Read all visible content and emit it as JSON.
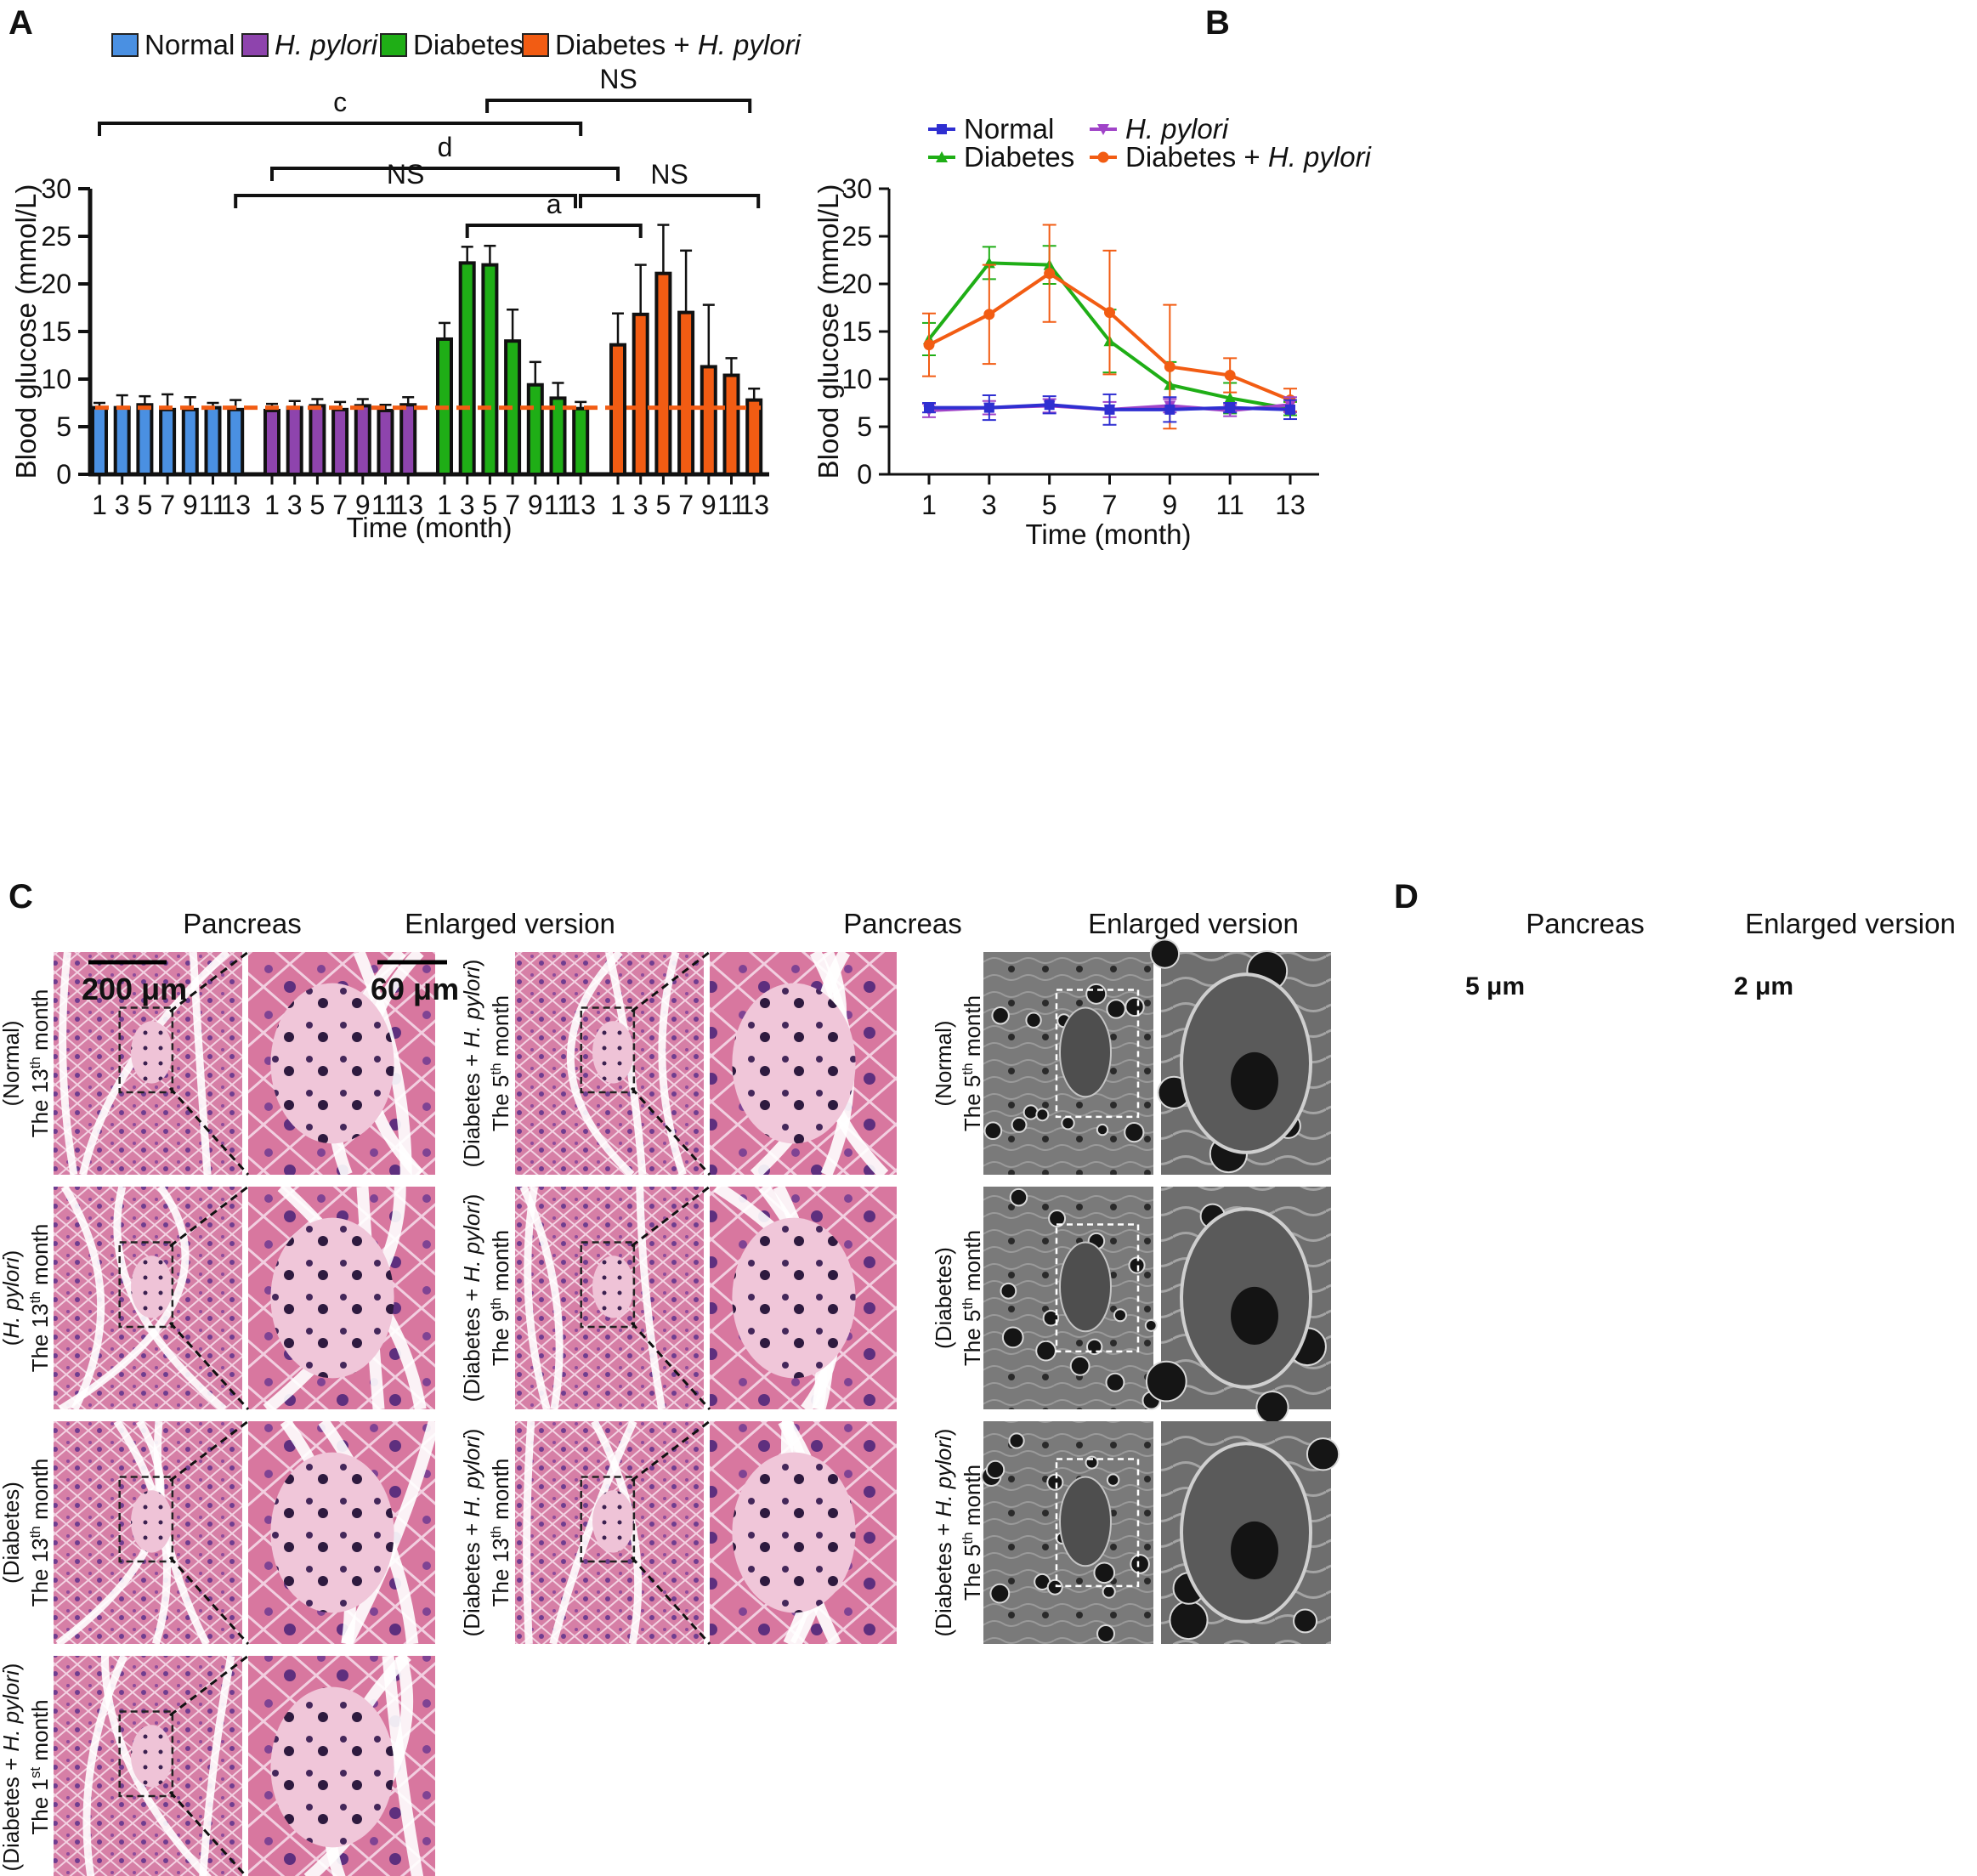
{
  "chart_data": [
    {
      "panel": "A",
      "type": "bar",
      "categories": [
        "1",
        "3",
        "5",
        "7",
        "9",
        "11",
        "13"
      ],
      "series": [
        {
          "name": "Normal",
          "values": [
            7.0,
            7.0,
            7.3,
            6.8,
            6.8,
            7.0,
            6.8
          ],
          "errors": [
            0.5,
            1.3,
            0.9,
            1.6,
            1.3,
            0.5,
            1.0
          ],
          "color": "#4a90e2"
        },
        {
          "name": "H. pylori",
          "values": [
            6.7,
            7.0,
            7.2,
            6.8,
            7.2,
            6.7,
            7.3
          ],
          "errors": [
            0.7,
            0.7,
            0.7,
            0.8,
            0.7,
            0.6,
            0.8
          ],
          "color": "#8e44ad"
        },
        {
          "name": "Diabetes",
          "values": [
            14.2,
            22.2,
            22.0,
            14.0,
            9.4,
            8.0,
            6.9
          ],
          "errors": [
            1.7,
            1.7,
            2.0,
            3.3,
            2.4,
            1.6,
            0.7
          ],
          "color": "#1fae16"
        },
        {
          "name": "Diabetes + H. pylori",
          "values": [
            13.6,
            16.8,
            21.1,
            17.0,
            11.3,
            10.4,
            7.8
          ],
          "errors": [
            3.3,
            5.2,
            5.1,
            6.5,
            6.5,
            1.8,
            1.2
          ],
          "color": "#f25c13"
        }
      ],
      "reference_line": 7.0,
      "ylim": [
        0,
        30
      ],
      "yticks": [
        0,
        5,
        10,
        15,
        20,
        25,
        30
      ],
      "xlabel": "Time (month)",
      "ylabel": "Blood glucose (mmol/L)",
      "significance": [
        "c",
        "NS",
        "d",
        "NS",
        "NS",
        "a"
      ]
    },
    {
      "panel": "B",
      "type": "line",
      "x": [
        1,
        3,
        5,
        7,
        9,
        11,
        13
      ],
      "series": [
        {
          "name": "Normal",
          "values": [
            7.0,
            7.0,
            7.3,
            6.8,
            6.8,
            7.0,
            6.8
          ],
          "errors": [
            0.5,
            1.3,
            0.9,
            1.6,
            1.3,
            0.5,
            1.0
          ],
          "color": "#2f2fd1",
          "marker": "square"
        },
        {
          "name": "H. pylori",
          "values": [
            6.7,
            7.0,
            7.2,
            6.8,
            7.2,
            6.7,
            7.3
          ],
          "errors": [
            0.7,
            0.7,
            0.7,
            0.8,
            0.7,
            0.6,
            0.8
          ],
          "color": "#a044c8",
          "marker": "triangle-down"
        },
        {
          "name": "Diabetes",
          "values": [
            14.2,
            22.2,
            22.0,
            14.0,
            9.4,
            8.0,
            6.9
          ],
          "errors": [
            1.7,
            1.7,
            2.0,
            3.3,
            2.4,
            1.6,
            0.7
          ],
          "color": "#1fae16",
          "marker": "triangle"
        },
        {
          "name": "Diabetes + H. pylori",
          "values": [
            13.6,
            16.8,
            21.1,
            17.0,
            11.3,
            10.4,
            7.8
          ],
          "errors": [
            3.3,
            5.2,
            5.1,
            6.5,
            6.5,
            1.8,
            1.2
          ],
          "color": "#f25c13",
          "marker": "circle"
        }
      ],
      "ylim": [
        0,
        30
      ],
      "yticks": [
        0,
        5,
        10,
        15,
        20,
        25,
        30
      ],
      "xlabel": "Time (month)",
      "ylabel": "Blood glucose (mmol/L)"
    }
  ],
  "panels": {
    "a": "A",
    "b": "B",
    "c": "C",
    "d": "D"
  },
  "panel_c": {
    "col_pancreas": "Pancreas",
    "col_enlarged": "Enlarged version",
    "scale_main": "200 μm",
    "scale_enlarged": "60 μm",
    "rows_left": [
      {
        "group": "(Normal)",
        "time_pre": "The 13",
        "time_sup": "th",
        "time_post": " month"
      },
      {
        "group": "(H. pylori)",
        "time_pre": "The 13",
        "time_sup": "th",
        "time_post": " month"
      },
      {
        "group": "(Diabetes)",
        "time_pre": "The 13",
        "time_sup": "th",
        "time_post": " month"
      },
      {
        "group": "(Diabetes + H. pylori)",
        "time_pre": "The 1",
        "time_sup": "st",
        "time_post": " month"
      }
    ],
    "rows_right": [
      {
        "group": "(Diabetes + H. pylori)",
        "time_pre": "The 5",
        "time_sup": "th",
        "time_post": " month"
      },
      {
        "group": "(Diabetes + H. pylori)",
        "time_pre": "The 9",
        "time_sup": "th",
        "time_post": " month"
      },
      {
        "group": "(Diabetes + H. pylori)",
        "time_pre": "The 13",
        "time_sup": "th",
        "time_post": " month"
      }
    ]
  },
  "panel_d": {
    "col_pancreas": "Pancreas",
    "col_enlarged": "Enlarged version",
    "scale_main": "5 μm",
    "scale_enlarged": "2 μm",
    "rows": [
      {
        "group": "(Normal)",
        "time_pre": "The 5",
        "time_sup": "th",
        "time_post": " month"
      },
      {
        "group": "(Diabetes)",
        "time_pre": "The 5",
        "time_sup": "th",
        "time_post": " month"
      },
      {
        "group": "(Diabetes + H. pylori)",
        "time_pre": "The 5",
        "time_sup": "th",
        "time_post": " month"
      }
    ]
  },
  "colors": {
    "he_base": "#d8779f",
    "he_dark": "#a24f8f",
    "he_islet": "#eab7cf",
    "em_base": "#7c7c7c",
    "em_dark": "#1e1e1e",
    "em_light": "#c8c8c8",
    "ref_line": "#f25c13"
  }
}
